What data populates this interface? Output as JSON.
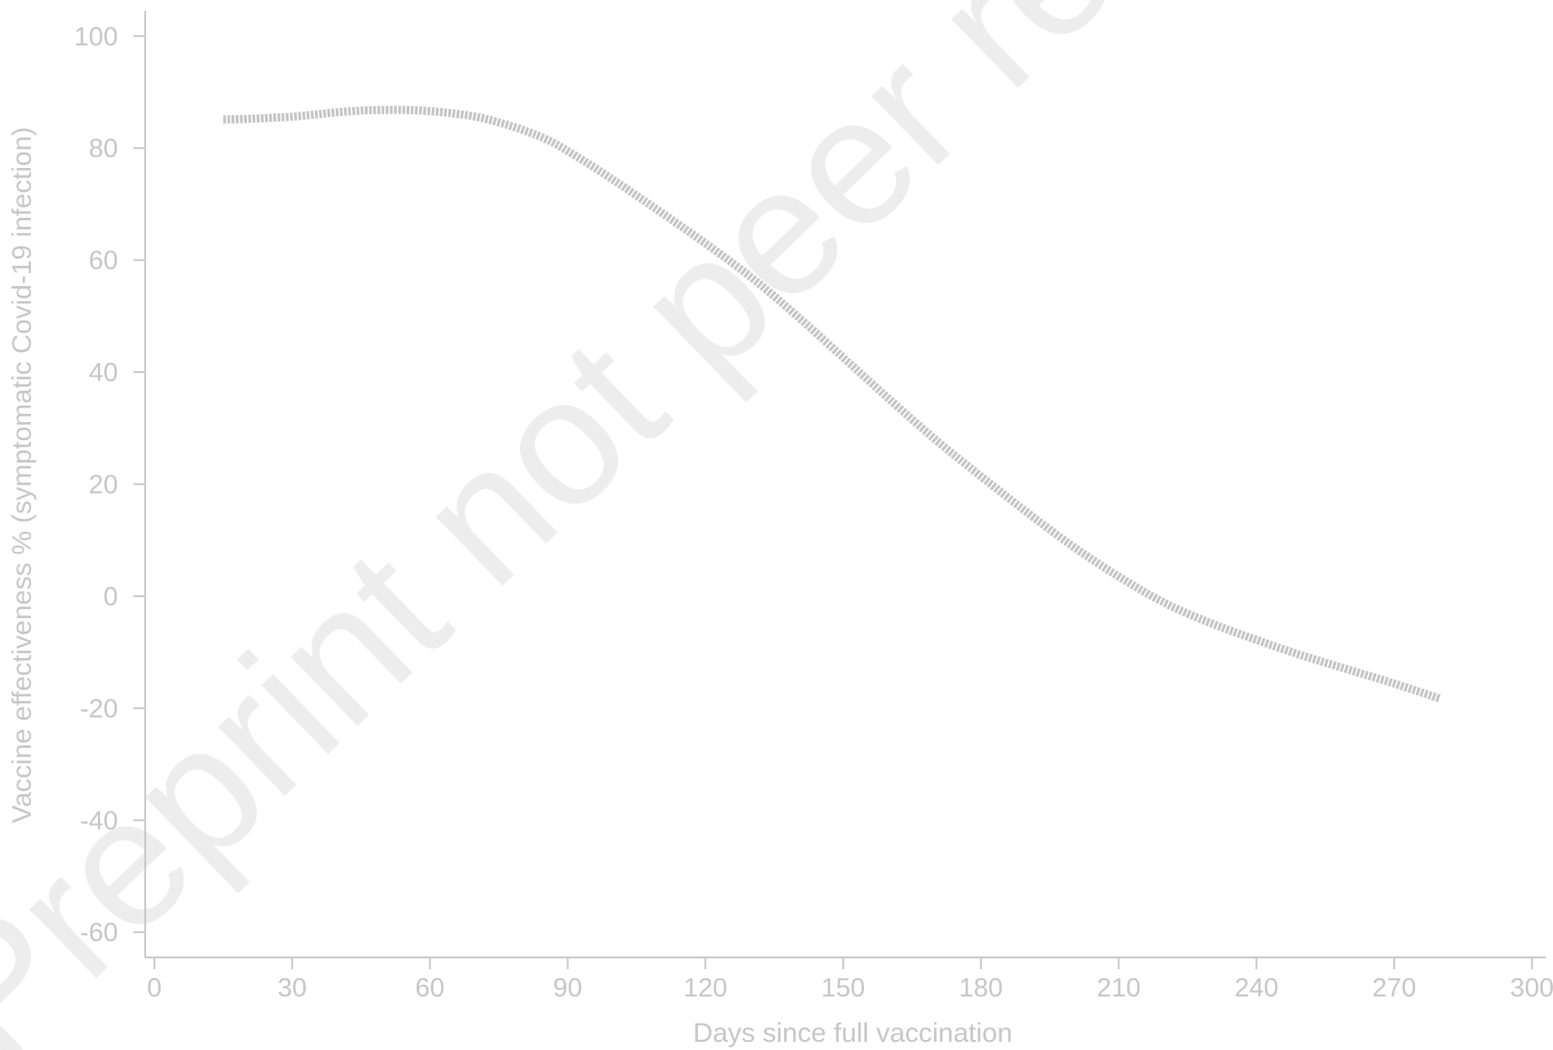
{
  "watermark": "Preprint not peer reviewed",
  "chart_data": {
    "type": "line",
    "xlabel": "Days since full vaccination",
    "ylabel": "Vaccine effectiveness % (symptomatic Covid-19 infection)",
    "xlim": [
      -2,
      303
    ],
    "ylim": [
      -64.5,
      104.5
    ],
    "x_ticks": [
      "0",
      "30",
      "60",
      "90",
      "120",
      "150",
      "180",
      "210",
      "240",
      "270",
      "300"
    ],
    "y_ticks": [
      "100",
      "80",
      "60",
      "40",
      "20",
      "0",
      "-20",
      "-40",
      "-60"
    ],
    "grid": false,
    "series": [
      {
        "color": "#c4c4c4",
        "x": [
          15,
          20,
          25,
          30,
          35,
          40,
          45,
          50,
          55,
          60,
          65,
          70,
          75,
          80,
          85,
          90,
          100,
          110,
          120,
          130,
          140,
          150,
          160,
          170,
          180,
          190,
          200,
          210,
          220,
          230,
          240,
          250,
          260,
          270,
          280
        ],
        "y": [
          85.1,
          85.2,
          85.4,
          85.6,
          86.0,
          86.4,
          86.7,
          86.8,
          86.8,
          86.6,
          86.2,
          85.6,
          84.6,
          83.3,
          81.7,
          79.5,
          74.3,
          68.7,
          63.0,
          56.9,
          50.0,
          42.6,
          35.2,
          28.0,
          21.4,
          15.0,
          8.9,
          3.5,
          -1.2,
          -4.8,
          -7.8,
          -10.6,
          -13.1,
          -15.6,
          -18.3
        ]
      }
    ]
  }
}
